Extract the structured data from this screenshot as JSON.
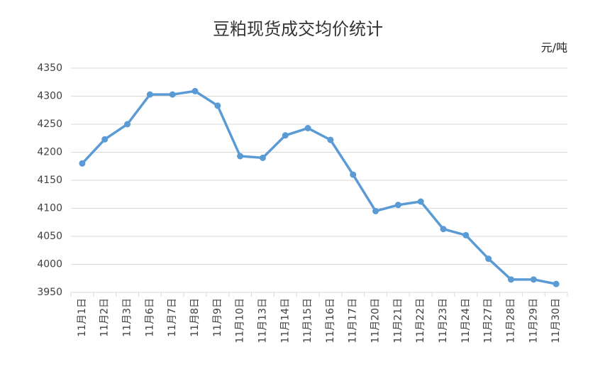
{
  "chart_data": {
    "type": "line",
    "title": "豆粕现货成交均价统计",
    "unit": "元/吨",
    "categories": [
      "11月1日",
      "11月2日",
      "11月3日",
      "11月6日",
      "11月7日",
      "11月8日",
      "11月9日",
      "11月10日",
      "11月13日",
      "11月14日",
      "11月15日",
      "11月16日",
      "11月17日",
      "11月20日",
      "11月21日",
      "11月22日",
      "11月23日",
      "11月24日",
      "11月27日",
      "11月28日",
      "11月29日",
      "11月30日"
    ],
    "values": [
      4180,
      4223,
      4250,
      4303,
      4303,
      4309,
      4283,
      4193,
      4190,
      4230,
      4243,
      4222,
      4160,
      4095,
      4106,
      4112,
      4063,
      4052,
      4010,
      3973,
      3973,
      3965
    ],
    "color": "#5b9bd5",
    "ylim": [
      3950,
      4350
    ],
    "yticks": [
      3950,
      4000,
      4050,
      4100,
      4150,
      4200,
      4250,
      4300,
      4350
    ],
    "grid": true
  }
}
